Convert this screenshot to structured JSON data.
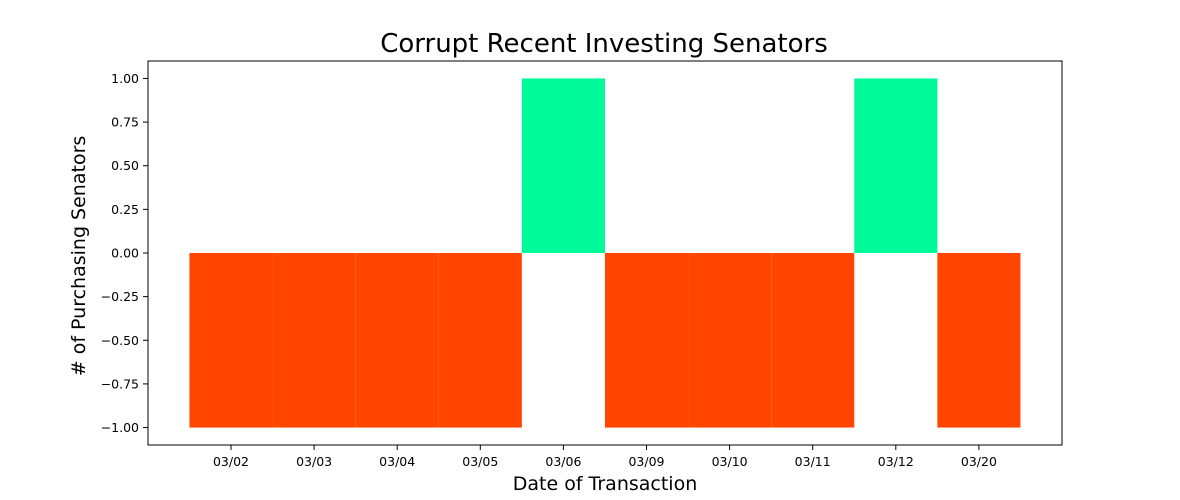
{
  "chart_data": {
    "type": "bar",
    "title": "Corrupt Recent Investing Senators",
    "xlabel": "Date of Transaction",
    "ylabel": "# of Purchasing Senators",
    "categories": [
      "03/02",
      "03/03",
      "03/04",
      "03/05",
      "03/06",
      "03/09",
      "03/10",
      "03/11",
      "03/12",
      "03/20"
    ],
    "values": [
      -1,
      -1,
      -1,
      -1,
      1,
      -1,
      -1,
      -1,
      1,
      -1
    ],
    "ylim": [
      -1.1,
      1.1
    ],
    "yticks": [
      1.0,
      0.75,
      0.5,
      0.25,
      0.0,
      -0.25,
      -0.5,
      -0.75,
      -1.0
    ],
    "ytick_labels": [
      "1.00",
      "0.75",
      "0.50",
      "0.25",
      "0.00",
      "−0.25",
      "−0.50",
      "−0.75",
      "−1.00"
    ],
    "grid": false,
    "colors": {
      "positive": "#00fa9a",
      "negative": "#ff4500"
    }
  }
}
